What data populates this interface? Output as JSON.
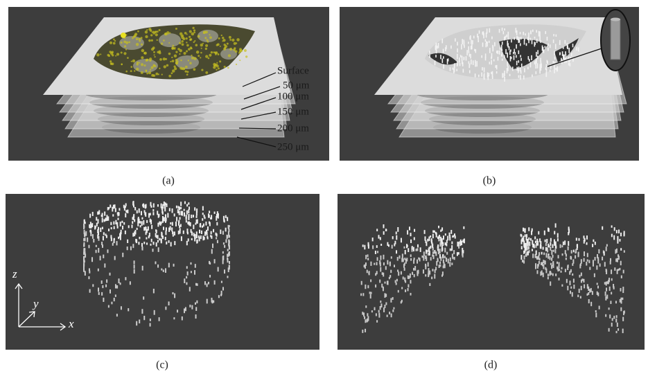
{
  "panels": [
    {
      "label": "(a)",
      "layer_labels": [
        "Surface",
        "50 μm",
        "100 μm",
        "150 μm",
        "200 μm",
        "250 μm"
      ]
    },
    {
      "label": "(b)"
    },
    {
      "label": "(c)",
      "axis_labels": [
        "z",
        "y",
        "x"
      ]
    },
    {
      "label": "(d)"
    }
  ]
}
